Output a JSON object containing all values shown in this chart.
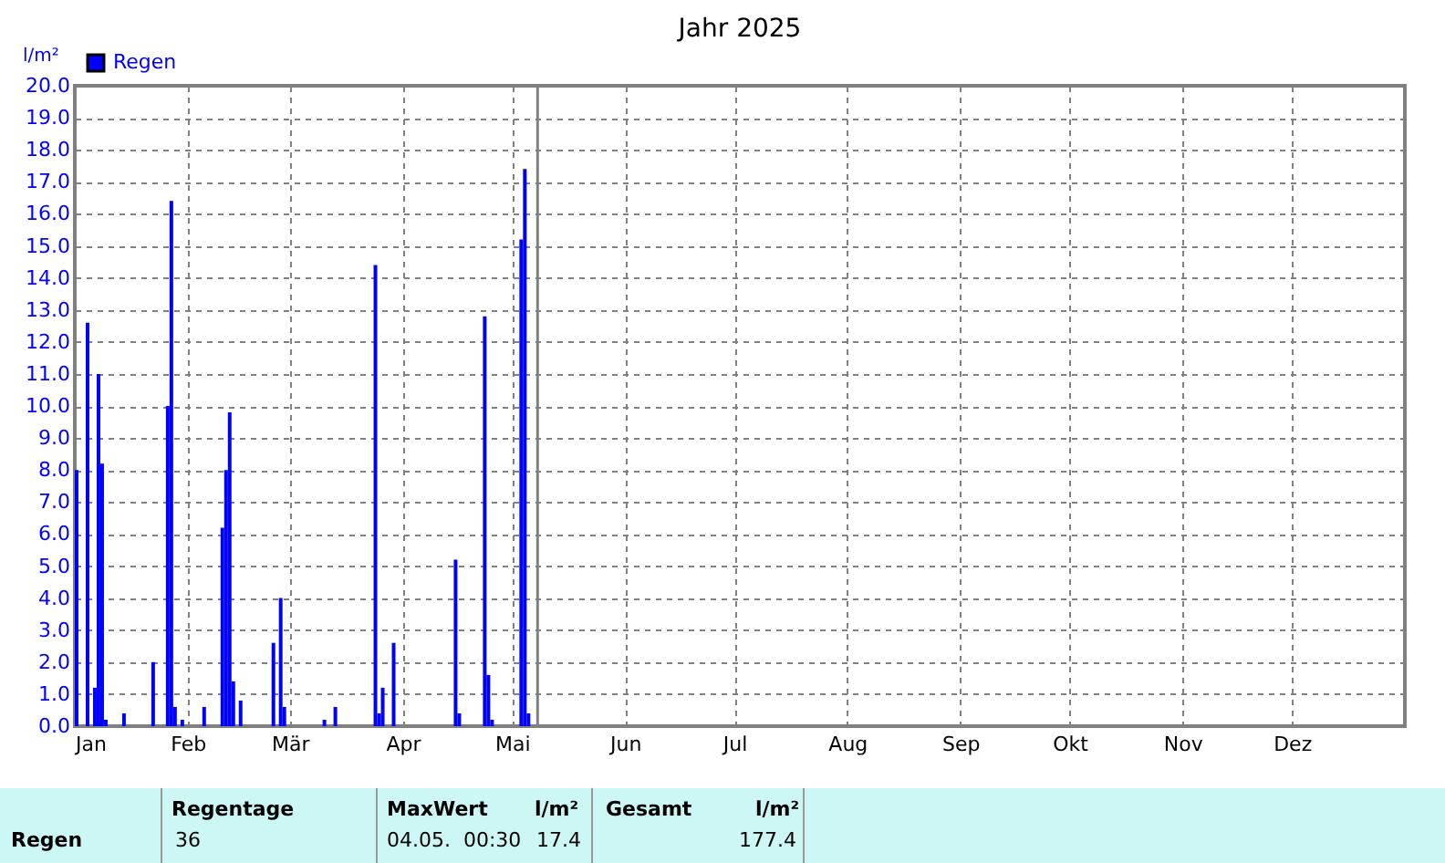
{
  "chart_data": {
    "type": "bar",
    "title": "Jahr 2025",
    "ylabel": "l/m²",
    "x": [
      "2025-01-01",
      "2025-01-04",
      "2025-01-06",
      "2025-01-07",
      "2025-01-08",
      "2025-01-09",
      "2025-01-14",
      "2025-01-22",
      "2025-01-26",
      "2025-01-27",
      "2025-01-28",
      "2025-01-30",
      "2025-02-05",
      "2025-02-10",
      "2025-02-11",
      "2025-02-12",
      "2025-02-13",
      "2025-02-15",
      "2025-02-24",
      "2025-02-26",
      "2025-02-27",
      "2025-03-10",
      "2025-03-13",
      "2025-03-24",
      "2025-03-25",
      "2025-03-26",
      "2025-03-29",
      "2025-04-15",
      "2025-04-16",
      "2025-04-23",
      "2025-04-24",
      "2025-04-25",
      "2025-05-03",
      "2025-05-04",
      "2025-05-05"
    ],
    "series": [
      {
        "name": "Regen",
        "color": "#0000ff",
        "values": [
          8.0,
          12.6,
          1.2,
          11.0,
          8.2,
          0.2,
          0.4,
          2.0,
          10.0,
          16.4,
          0.6,
          0.2,
          0.6,
          6.2,
          8.0,
          9.8,
          1.4,
          0.8,
          2.6,
          4.0,
          0.6,
          0.2,
          0.6,
          14.4,
          0.4,
          1.2,
          2.6,
          5.2,
          0.4,
          12.8,
          1.6,
          0.2,
          15.2,
          17.4,
          0.4
        ]
      }
    ],
    "xlim": [
      "2025-01-01",
      "2026-01-01"
    ],
    "xticks": [
      {
        "value": "2025-01-01",
        "label": "Jan"
      },
      {
        "value": "2025-02-01",
        "label": "Feb"
      },
      {
        "value": "2025-03-01",
        "label": "Mär"
      },
      {
        "value": "2025-04-01",
        "label": "Apr"
      },
      {
        "value": "2025-05-01",
        "label": "Mai"
      },
      {
        "value": "2025-06-01",
        "label": "Jun"
      },
      {
        "value": "2025-07-01",
        "label": "Jul"
      },
      {
        "value": "2025-08-01",
        "label": "Aug"
      },
      {
        "value": "2025-09-01",
        "label": "Sep"
      },
      {
        "value": "2025-10-01",
        "label": "Okt"
      },
      {
        "value": "2025-11-01",
        "label": "Nov"
      },
      {
        "value": "2025-12-01",
        "label": "Dez"
      }
    ],
    "ylim": [
      0,
      20
    ],
    "yticks": [
      {
        "value": 0,
        "label": "0.0"
      },
      {
        "value": 1,
        "label": "1.0"
      },
      {
        "value": 2,
        "label": "2.0"
      },
      {
        "value": 3,
        "label": "3.0"
      },
      {
        "value": 4,
        "label": "4.0"
      },
      {
        "value": 5,
        "label": "5.0"
      },
      {
        "value": 6,
        "label": "6.0"
      },
      {
        "value": 7,
        "label": "7.0"
      },
      {
        "value": 8,
        "label": "8.0"
      },
      {
        "value": 9,
        "label": "9.0"
      },
      {
        "value": 10,
        "label": "10.0"
      },
      {
        "value": 11,
        "label": "11.0"
      },
      {
        "value": 12,
        "label": "12.0"
      },
      {
        "value": 13,
        "label": "13.0"
      },
      {
        "value": 14,
        "label": "14.0"
      },
      {
        "value": 15,
        "label": "15.0"
      },
      {
        "value": 16,
        "label": "16.0"
      },
      {
        "value": 17,
        "label": "17.0"
      },
      {
        "value": 18,
        "label": "18.0"
      },
      {
        "value": 19,
        "label": "19.0"
      },
      {
        "value": 20,
        "label": "20.0"
      }
    ],
    "ref_lines": [
      {
        "axis": "x",
        "value": "2025-05-08",
        "color": "#808080"
      }
    ],
    "grid": true,
    "legend": "top left",
    "annotations": [
      "Regen",
      "Regentage",
      "36",
      "MaxWert",
      "l/m²",
      "04.05.  00:30",
      "17.4",
      "Gesamt",
      "l/m²",
      "177.4"
    ]
  }
}
